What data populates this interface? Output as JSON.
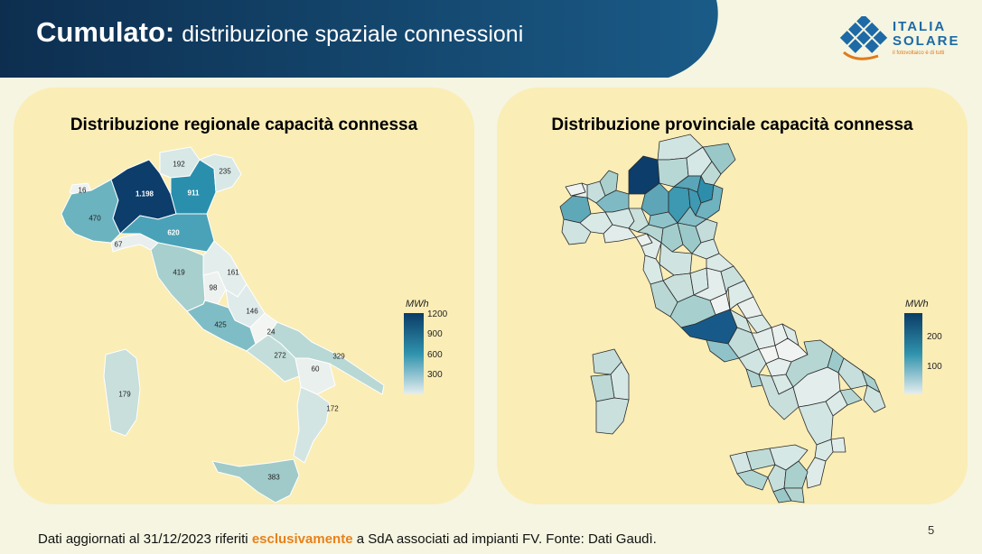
{
  "header": {
    "title_main": "Cumulato:",
    "title_sub": "distribuzione spaziale connessioni"
  },
  "logo": {
    "line1": "ITALIA",
    "line2": "SOLARE",
    "tagline": "il fotovoltaico è di tutti"
  },
  "colors": {
    "banner_dark": "#0d2e4f",
    "banner_light": "#1a5b87",
    "panel": "#faedb6",
    "scale_dark": "#0b3b66",
    "scale_mid": "#2f93ad",
    "scale_light": "#e6eeee",
    "highlight": "#e8811a"
  },
  "left_map": {
    "title": "Distribuzione regionale capacità connessa",
    "legend": {
      "title": "MWh",
      "ticks": [
        "1200",
        "900",
        "600",
        "300"
      ]
    },
    "regions": [
      {
        "name": "valle-d-aosta",
        "value": "16"
      },
      {
        "name": "piemonte",
        "value": "470"
      },
      {
        "name": "liguria",
        "value": "67"
      },
      {
        "name": "lombardia",
        "value": "1.198"
      },
      {
        "name": "trentino-alto-adige",
        "value": "192"
      },
      {
        "name": "veneto",
        "value": "911"
      },
      {
        "name": "friuli-venezia-giulia",
        "value": "235"
      },
      {
        "name": "emilia-romagna",
        "value": "620"
      },
      {
        "name": "toscana",
        "value": "419"
      },
      {
        "name": "umbria",
        "value": "98"
      },
      {
        "name": "marche",
        "value": "161"
      },
      {
        "name": "abruzzo",
        "value": "146"
      },
      {
        "name": "lazio",
        "value": "425"
      },
      {
        "name": "molise",
        "value": "24"
      },
      {
        "name": "campania",
        "value": "272"
      },
      {
        "name": "puglia",
        "value": "329"
      },
      {
        "name": "basilicata",
        "value": "60"
      },
      {
        "name": "calabria",
        "value": "172"
      },
      {
        "name": "sicilia",
        "value": "383"
      },
      {
        "name": "sardegna",
        "value": "179"
      }
    ]
  },
  "right_map": {
    "title": "Distribuzione provinciale capacità connessa",
    "legend": {
      "title": "MWh",
      "ticks": [
        "200",
        "100"
      ]
    }
  },
  "footer": {
    "text_before": "Dati aggiornati al 31/12/2023 riferiti ",
    "highlight": "esclusivamente",
    "text_after": " a SdA associati ad impianti FV. Fonte: Dati Gaudì."
  },
  "page_number": "5"
}
